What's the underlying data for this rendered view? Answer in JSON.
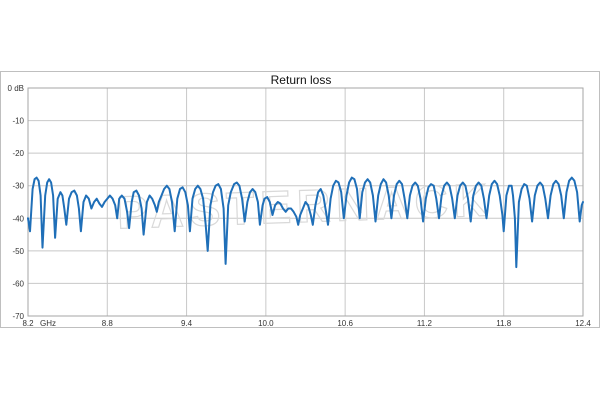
{
  "watermark": "PASTERNACK",
  "chart_data": {
    "type": "line",
    "title": "Return loss",
    "xlabel": "",
    "ylabel": "",
    "x_unit_label": "GHz",
    "y_first_label": "0 dB",
    "xlim": [
      8.2,
      12.4
    ],
    "ylim": [
      -70,
      0
    ],
    "x_ticks": [
      8.2,
      8.8,
      9.4,
      10.0,
      10.6,
      11.2,
      11.8,
      12.4
    ],
    "x_tick_labels": [
      "8.2",
      "8.8",
      "9.4",
      "10.0",
      "10.6",
      "11.2",
      "11.8",
      "12.4"
    ],
    "y_ticks": [
      0,
      -10,
      -20,
      -30,
      -40,
      -50,
      -60,
      -70
    ],
    "y_tick_labels": [
      "0 dB",
      "-10",
      "-20",
      "-30",
      "-40",
      "-50",
      "-60",
      "-70"
    ],
    "grid": true,
    "line_color": "#1f6fb8",
    "series": [
      {
        "name": "",
        "points": [
          [
            8.2,
            -40
          ],
          [
            8.215,
            -44
          ],
          [
            8.235,
            -31
          ],
          [
            8.25,
            -28
          ],
          [
            8.265,
            -27.5
          ],
          [
            8.28,
            -28.5
          ],
          [
            8.295,
            -33
          ],
          [
            8.31,
            -49
          ],
          [
            8.33,
            -33
          ],
          [
            8.345,
            -29
          ],
          [
            8.36,
            -28
          ],
          [
            8.375,
            -29
          ],
          [
            8.39,
            -33
          ],
          [
            8.405,
            -46
          ],
          [
            8.425,
            -34
          ],
          [
            8.445,
            -32
          ],
          [
            8.46,
            -33
          ],
          [
            8.475,
            -37
          ],
          [
            8.49,
            -42
          ],
          [
            8.51,
            -34
          ],
          [
            8.53,
            -32
          ],
          [
            8.55,
            -31.5
          ],
          [
            8.57,
            -33
          ],
          [
            8.585,
            -37
          ],
          [
            8.6,
            -44
          ],
          [
            8.62,
            -35
          ],
          [
            8.64,
            -33
          ],
          [
            8.66,
            -34
          ],
          [
            8.68,
            -37
          ],
          [
            8.7,
            -35
          ],
          [
            8.72,
            -34
          ],
          [
            8.74,
            -35.5
          ],
          [
            8.76,
            -36.5
          ],
          [
            8.78,
            -35
          ],
          [
            8.8,
            -34
          ],
          [
            8.82,
            -33
          ],
          [
            8.84,
            -34
          ],
          [
            8.86,
            -36
          ],
          [
            8.875,
            -40
          ],
          [
            8.89,
            -34
          ],
          [
            8.91,
            -33
          ],
          [
            8.93,
            -34
          ],
          [
            8.95,
            -38
          ],
          [
            8.965,
            -43
          ],
          [
            8.985,
            -35
          ],
          [
            9.0,
            -32
          ],
          [
            9.02,
            -31.5
          ],
          [
            9.04,
            -33
          ],
          [
            9.06,
            -37
          ],
          [
            9.075,
            -45
          ],
          [
            9.1,
            -35
          ],
          [
            9.12,
            -33
          ],
          [
            9.14,
            -34
          ],
          [
            9.16,
            -36
          ],
          [
            9.175,
            -38
          ],
          [
            9.19,
            -35
          ],
          [
            9.21,
            -33
          ],
          [
            9.23,
            -31
          ],
          [
            9.25,
            -30
          ],
          [
            9.27,
            -31
          ],
          [
            9.29,
            -35
          ],
          [
            9.31,
            -44
          ],
          [
            9.33,
            -34
          ],
          [
            9.35,
            -31
          ],
          [
            9.37,
            -30.5
          ],
          [
            9.39,
            -32
          ],
          [
            9.41,
            -36
          ],
          [
            9.425,
            -44
          ],
          [
            9.445,
            -34
          ],
          [
            9.465,
            -31
          ],
          [
            9.485,
            -30
          ],
          [
            9.505,
            -31
          ],
          [
            9.525,
            -34
          ],
          [
            9.545,
            -42
          ],
          [
            9.56,
            -50
          ],
          [
            9.58,
            -36
          ],
          [
            9.6,
            -32
          ],
          [
            9.62,
            -30
          ],
          [
            9.64,
            -29.5
          ],
          [
            9.66,
            -31
          ],
          [
            9.68,
            -37
          ],
          [
            9.695,
            -54
          ],
          [
            9.715,
            -36
          ],
          [
            9.735,
            -32
          ],
          [
            9.76,
            -29.5
          ],
          [
            9.78,
            -29
          ],
          [
            9.8,
            -30
          ],
          [
            9.82,
            -34
          ],
          [
            9.84,
            -41
          ],
          [
            9.86,
            -35
          ],
          [
            9.88,
            -32
          ],
          [
            9.9,
            -31
          ],
          [
            9.92,
            -32
          ],
          [
            9.94,
            -35
          ],
          [
            9.955,
            -42
          ],
          [
            9.975,
            -36
          ],
          [
            9.99,
            -34
          ],
          [
            10.01,
            -33.5
          ],
          [
            10.03,
            -35
          ],
          [
            10.05,
            -39
          ],
          [
            10.07,
            -36
          ],
          [
            10.09,
            -35
          ],
          [
            10.11,
            -35.5
          ],
          [
            10.13,
            -37
          ],
          [
            10.15,
            -38
          ],
          [
            10.17,
            -37
          ],
          [
            10.19,
            -37
          ],
          [
            10.21,
            -38
          ],
          [
            10.23,
            -39.5
          ],
          [
            10.245,
            -42
          ],
          [
            10.26,
            -39
          ],
          [
            10.28,
            -37
          ],
          [
            10.3,
            -35
          ],
          [
            10.32,
            -36
          ],
          [
            10.34,
            -39
          ],
          [
            10.355,
            -42
          ],
          [
            10.375,
            -36
          ],
          [
            10.395,
            -32
          ],
          [
            10.415,
            -31
          ],
          [
            10.435,
            -33
          ],
          [
            10.455,
            -38
          ],
          [
            10.47,
            -42
          ],
          [
            10.49,
            -34
          ],
          [
            10.51,
            -30
          ],
          [
            10.53,
            -28.5
          ],
          [
            10.55,
            -29
          ],
          [
            10.57,
            -32
          ],
          [
            10.59,
            -40
          ],
          [
            10.61,
            -33
          ],
          [
            10.63,
            -29
          ],
          [
            10.65,
            -27.5
          ],
          [
            10.67,
            -28
          ],
          [
            10.69,
            -31
          ],
          [
            10.71,
            -40
          ],
          [
            10.73,
            -32
          ],
          [
            10.75,
            -29
          ],
          [
            10.77,
            -28
          ],
          [
            10.79,
            -29
          ],
          [
            10.81,
            -33
          ],
          [
            10.83,
            -41
          ],
          [
            10.85,
            -33
          ],
          [
            10.87,
            -29.5
          ],
          [
            10.89,
            -28
          ],
          [
            10.91,
            -29
          ],
          [
            10.93,
            -33
          ],
          [
            10.95,
            -40
          ],
          [
            10.97,
            -33
          ],
          [
            10.99,
            -29.5
          ],
          [
            11.01,
            -28.5
          ],
          [
            11.03,
            -29.5
          ],
          [
            11.05,
            -34
          ],
          [
            11.07,
            -40
          ],
          [
            11.09,
            -33
          ],
          [
            11.11,
            -30
          ],
          [
            11.13,
            -29
          ],
          [
            11.15,
            -30
          ],
          [
            11.17,
            -34
          ],
          [
            11.19,
            -41
          ],
          [
            11.21,
            -34
          ],
          [
            11.23,
            -30.5
          ],
          [
            11.25,
            -29.5
          ],
          [
            11.27,
            -30
          ],
          [
            11.29,
            -34
          ],
          [
            11.31,
            -40
          ],
          [
            11.33,
            -33
          ],
          [
            11.35,
            -30
          ],
          [
            11.37,
            -29
          ],
          [
            11.39,
            -30
          ],
          [
            11.41,
            -34
          ],
          [
            11.43,
            -40
          ],
          [
            11.45,
            -33
          ],
          [
            11.47,
            -30
          ],
          [
            11.49,
            -29
          ],
          [
            11.51,
            -30
          ],
          [
            11.53,
            -34
          ],
          [
            11.55,
            -41
          ],
          [
            11.57,
            -33
          ],
          [
            11.59,
            -30
          ],
          [
            11.61,
            -29
          ],
          [
            11.63,
            -30
          ],
          [
            11.65,
            -34
          ],
          [
            11.67,
            -40
          ],
          [
            11.69,
            -33
          ],
          [
            11.71,
            -29.5
          ],
          [
            11.73,
            -28.5
          ],
          [
            11.75,
            -29.5
          ],
          [
            11.77,
            -33
          ],
          [
            11.79,
            -39
          ],
          [
            11.8,
            -44
          ],
          [
            11.82,
            -33
          ],
          [
            11.84,
            -30
          ],
          [
            11.86,
            -30
          ],
          [
            11.87,
            -33
          ],
          [
            11.885,
            -40
          ],
          [
            11.895,
            -55
          ],
          [
            11.915,
            -35
          ],
          [
            11.935,
            -31
          ],
          [
            11.955,
            -29.5
          ],
          [
            11.975,
            -30
          ],
          [
            11.995,
            -34
          ],
          [
            12.015,
            -41
          ],
          [
            12.035,
            -33
          ],
          [
            12.055,
            -30
          ],
          [
            12.075,
            -29
          ],
          [
            12.095,
            -30
          ],
          [
            12.115,
            -34
          ],
          [
            12.135,
            -40
          ],
          [
            12.155,
            -33
          ],
          [
            12.175,
            -29.5
          ],
          [
            12.195,
            -28.5
          ],
          [
            12.215,
            -29.5
          ],
          [
            12.235,
            -33
          ],
          [
            12.255,
            -40
          ],
          [
            12.275,
            -32
          ],
          [
            12.295,
            -28.5
          ],
          [
            12.315,
            -27.5
          ],
          [
            12.335,
            -28.5
          ],
          [
            12.355,
            -32
          ],
          [
            12.375,
            -41
          ],
          [
            12.39,
            -36
          ],
          [
            12.4,
            -35
          ]
        ]
      }
    ]
  }
}
